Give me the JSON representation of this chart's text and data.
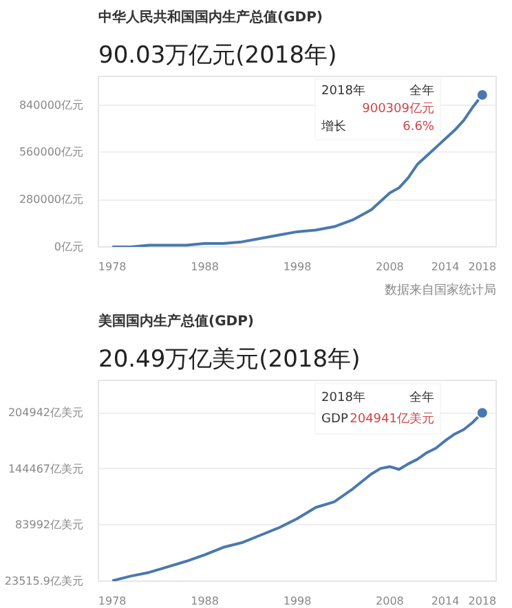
{
  "chart_data": [
    {
      "type": "line",
      "title": "中华人民共和国国内生产总值(GDP)",
      "subtitle": "90.03万亿元(2018年)",
      "x": [
        1978,
        1980,
        1982,
        1984,
        1986,
        1988,
        1990,
        1992,
        1994,
        1996,
        1998,
        2000,
        2002,
        2004,
        2006,
        2007,
        2008,
        2009,
        2010,
        2011,
        2012,
        2013,
        2014,
        2015,
        2016,
        2017,
        2018
      ],
      "series": [
        {
          "color": "#4a78b0",
          "values": [
            0,
            0,
            10000,
            10000,
            10000,
            20000,
            20000,
            30000,
            50000,
            70000,
            90000,
            100000,
            120000,
            160000,
            220000,
            270000,
            320000,
            350000,
            410000,
            490000,
            540000,
            590000,
            640000,
            690000,
            750000,
            830000,
            900000
          ]
        }
      ],
      "xlim": [
        1976.5,
        2019.5
      ],
      "xticks": [
        1978,
        1988,
        1998,
        2008,
        2014,
        2018
      ],
      "ylim": [
        0,
        1010000
      ],
      "yticks": [
        {
          "value": 0,
          "label": "0亿元"
        },
        {
          "value": 280000,
          "label": "280000亿元"
        },
        {
          "value": 560000,
          "label": "560000亿元"
        },
        {
          "value": 840000,
          "label": "840000亿元"
        }
      ],
      "grid": "y",
      "annotations": [
        "2018年",
        "全年",
        "900309亿元",
        "增长",
        "6.6%",
        "数据来自国家统计局"
      ]
    },
    {
      "type": "line",
      "title": "美国国内生产总值(GDP)",
      "subtitle": "20.49万亿美元(2018年)",
      "x": [
        1978,
        1980,
        1982,
        1984,
        1986,
        1988,
        1990,
        1992,
        1994,
        1996,
        1998,
        2000,
        2002,
        2004,
        2006,
        2007,
        2008,
        2009,
        2010,
        2011,
        2012,
        2013,
        2014,
        2015,
        2016,
        2017,
        2018
      ],
      "series": [
        {
          "color": "#4a78b0",
          "values": [
            24000,
            29000,
            33000,
            39000,
            45000,
            52000,
            60000,
            65000,
            73000,
            81000,
            91000,
            103000,
            109000,
            123000,
            139000,
            145000,
            147000,
            144000,
            150000,
            155000,
            162000,
            167000,
            175000,
            182000,
            187000,
            195000,
            205000
          ]
        }
      ],
      "xlim": [
        1976.5,
        2019.5
      ],
      "xticks": [
        1978,
        1988,
        1998,
        2008,
        2014,
        2018
      ],
      "ylim": [
        23515.9,
        240000
      ],
      "yticks": [
        {
          "value": 23515.9,
          "label": "23515.9亿美元"
        },
        {
          "value": 83992,
          "label": "83992亿美元"
        },
        {
          "value": 144467,
          "label": "144467亿美元"
        },
        {
          "value": 204942,
          "label": "204942亿美元"
        }
      ],
      "grid": "y",
      "annotations": [
        "2018年",
        "全年",
        "GDP",
        "204941亿美元"
      ]
    }
  ]
}
